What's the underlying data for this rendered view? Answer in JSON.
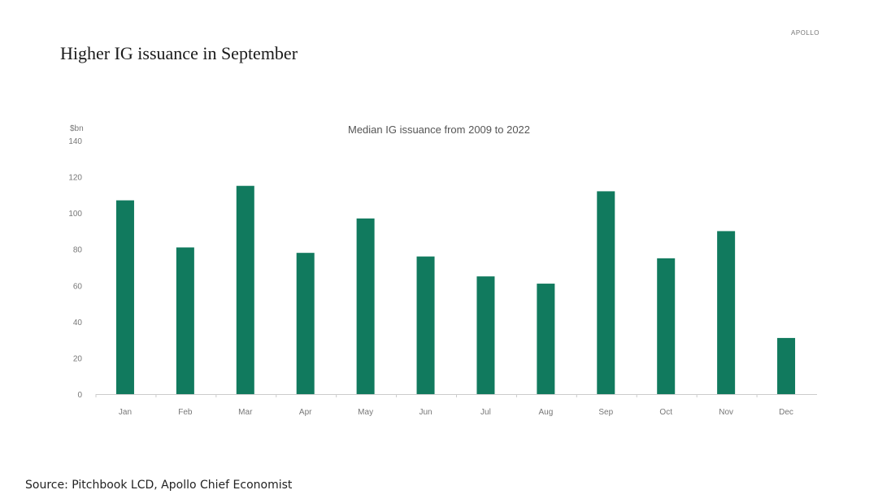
{
  "header": {
    "top_mark": "APOLLO",
    "title": "Higher IG issuance in September"
  },
  "footer": {
    "source": "Source: Pitchbook LCD, Apollo Chief Economist"
  },
  "colors": {
    "bar": "#117a5e",
    "axis": "#cccccc",
    "text": "#777777"
  },
  "chart_data": {
    "type": "bar",
    "title": "Median IG issuance from 2009 to 2022",
    "ylabel": "$bn",
    "xlabel": "",
    "categories": [
      "Jan",
      "Feb",
      "Mar",
      "Apr",
      "May",
      "Jun",
      "Jul",
      "Aug",
      "Sep",
      "Oct",
      "Nov",
      "Dec"
    ],
    "values": [
      107,
      81,
      115,
      78,
      97,
      76,
      65,
      61,
      112,
      75,
      90,
      31
    ],
    "ylim": [
      0,
      140
    ],
    "yticks": [
      0,
      20,
      40,
      60,
      80,
      100,
      120,
      140
    ],
    "grid": false,
    "legend": "none"
  }
}
